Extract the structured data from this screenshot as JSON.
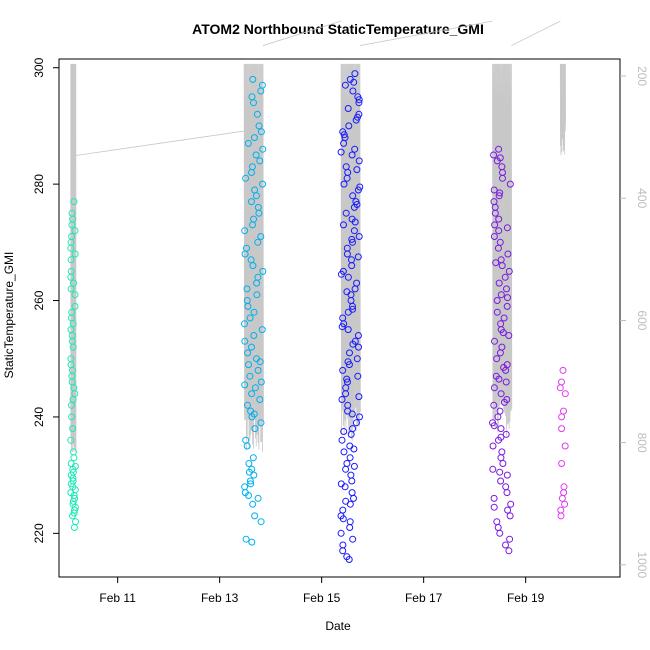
{
  "chart_data": {
    "type": "scatter",
    "title": "ATOM2 Northbound StaticTemperature_GMI",
    "xlabel": "Date",
    "ylabel": "StaticTemperature_GMI",
    "x_ticks": [
      "Feb 11",
      "Feb 13",
      "Feb 15",
      "Feb 17",
      "Feb 19"
    ],
    "x_tick_days": [
      11,
      13,
      15,
      17,
      19
    ],
    "xlim_days": [
      9.85,
      20.85
    ],
    "y_ticks": [
      "220",
      "240",
      "260",
      "280",
      "300"
    ],
    "ylim": [
      212.5,
      301.5
    ],
    "y2_label": "",
    "y2_ticks": [
      "200",
      "400",
      "600",
      "800",
      "1000"
    ],
    "y2lim": [
      1020,
      172
    ],
    "y2_reversed": true,
    "grid": false,
    "legend": "none",
    "colors": {
      "axis": "#000000",
      "secondary_axis": "#bdbdbd",
      "altitude_trace": "#c8c8c8",
      "flight_1": "#1de9b6",
      "flight_2": "#00b0f0",
      "flight_3": "#1a1aff",
      "flight_4": "#7a1ae0",
      "flight_5": "#e03cf0"
    },
    "series": [
      {
        "day_range": [
          10.08,
          10.18
        ],
        "values": [
          273,
          272,
          271,
          269,
          267,
          264,
          263,
          261,
          259,
          257,
          256,
          255,
          254,
          252,
          249,
          248,
          247,
          246,
          244,
          242,
          240,
          236,
          233,
          232,
          231,
          230,
          229,
          228,
          227,
          226,
          225,
          224,
          223,
          222,
          221,
          277,
          275,
          274,
          270,
          268,
          265,
          262,
          258,
          253,
          250,
          245,
          243,
          238,
          234,
          231.5,
          230.5,
          229.5,
          228.5,
          227.5,
          226.5,
          225.5,
          224.5,
          223.5
        ]
      },
      {
        "day_range": [
          13.48,
          13.85
        ],
        "values": [
          298,
          297,
          296,
          295,
          294,
          292,
          290,
          289,
          288,
          286,
          285,
          284,
          283,
          281,
          280,
          279,
          278,
          277,
          276,
          275,
          274,
          273,
          271,
          270,
          268,
          267,
          266,
          265,
          263,
          262,
          261,
          260,
          259,
          258,
          257,
          256,
          255,
          254,
          253,
          252,
          251,
          250,
          249,
          248,
          247,
          246,
          245,
          244,
          243,
          242,
          241,
          240,
          239,
          238,
          236,
          235,
          233,
          232,
          231,
          230,
          229,
          228,
          227,
          226,
          225,
          223,
          222,
          219,
          218.5,
          287,
          282,
          272,
          269,
          264,
          249.5,
          245.5,
          240.5,
          230.5,
          228.5,
          226.5
        ]
      },
      {
        "day_range": [
          15.38,
          15.75
        ],
        "values": [
          299,
          298,
          297,
          296,
          295,
          294,
          293,
          292,
          291,
          290,
          289,
          288,
          287,
          286,
          285,
          284,
          283,
          282,
          281,
          280,
          279,
          278,
          277,
          276,
          275,
          274,
          273,
          272,
          271,
          270,
          269,
          268,
          267,
          266,
          265,
          264,
          263,
          262,
          261,
          260,
          259,
          258,
          257,
          256,
          255,
          254,
          253,
          252,
          251,
          250,
          249,
          248,
          247,
          246,
          245,
          244,
          243,
          242,
          241,
          240,
          239,
          238,
          237,
          236,
          235,
          234,
          233,
          232,
          231,
          230,
          229,
          228,
          227,
          226,
          225,
          224,
          223,
          222,
          221,
          220,
          219,
          218,
          217,
          216,
          215.5,
          297.5,
          294.5,
          291.5,
          288.5,
          285.5,
          282.5,
          279.5,
          276.5,
          273.5,
          270.5,
          267.5,
          264.5,
          261.5,
          258.5,
          255.5,
          252.5,
          249.5,
          246.5,
          243.5,
          240.5,
          237.5,
          234.5,
          231.5,
          228.5,
          225.5,
          222.5
        ]
      },
      {
        "day_range": [
          18.35,
          18.72
        ],
        "values": [
          286,
          285,
          284,
          283,
          282,
          281,
          280,
          279,
          278,
          277,
          276,
          275,
          274,
          273,
          272,
          271,
          270,
          269,
          268,
          267,
          266,
          265,
          264,
          263,
          262,
          261,
          260,
          259,
          258,
          257,
          256,
          255,
          254,
          253,
          252,
          251,
          250,
          249,
          248,
          247,
          246,
          245,
          244,
          243,
          242,
          241,
          240,
          239,
          238,
          237,
          236,
          235,
          234,
          233,
          232,
          231,
          230,
          229,
          228,
          227,
          226,
          225,
          224,
          223,
          222,
          221,
          220,
          219,
          218,
          217,
          284.5,
          278.5,
          272.5,
          266.5,
          260.5,
          254.5,
          248.5,
          246.5,
          242.5,
          238.5,
          236.5,
          230.5,
          224.5
        ]
      },
      {
        "day_range": [
          19.68,
          19.78
        ],
        "values": [
          248,
          246,
          245,
          244,
          241,
          240,
          238,
          235,
          232,
          228,
          227,
          226,
          225,
          224,
          223
        ]
      }
    ],
    "altitude_trace": {
      "flights": [
        {
          "day_range": [
            10.08,
            10.18
          ],
          "bottom": 820,
          "connect_to_next": 330
        },
        {
          "day_range": [
            13.48,
            13.85
          ],
          "bottom": 820,
          "connect_to_next": 150
        },
        {
          "day_range": [
            15.38,
            15.75
          ],
          "bottom": 800,
          "connect_to_next": 150
        },
        {
          "day_range": [
            18.35,
            18.72
          ],
          "bottom": 790,
          "connect_to_next": 150
        },
        {
          "day_range": [
            19.68,
            19.78
          ],
          "bottom": 330,
          "connect_to_next": null
        }
      ],
      "dive_top": 180
    }
  }
}
